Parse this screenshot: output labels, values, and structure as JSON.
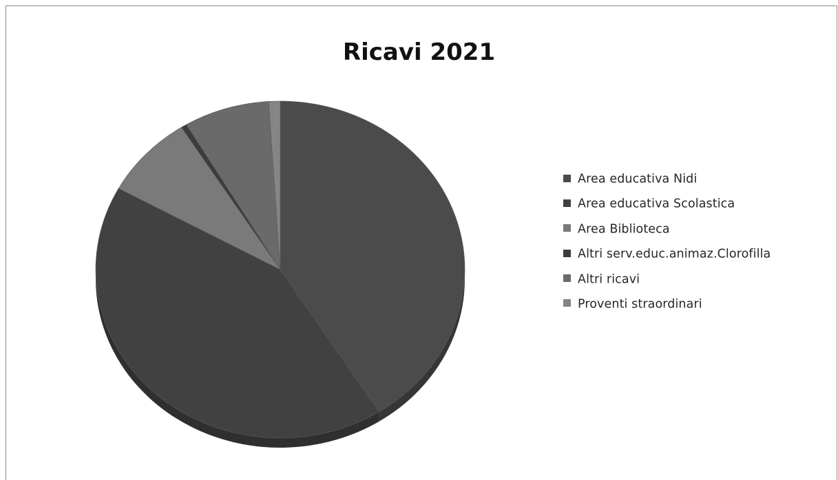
{
  "chart_data": {
    "type": "pie",
    "title": "Ricavi 2021",
    "legend_position": "right",
    "categories": [
      "Area educativa Nidi",
      "Area educativa Scolastica",
      "Area Biblioteca",
      "Altri serv.educ.animaz.Clorofilla",
      "Altri ricavi",
      "Proventi straordinari"
    ],
    "values": [
      41,
      42,
      8,
      0.5,
      7.5,
      1
    ],
    "colors": [
      "#4b4b4b",
      "#414141",
      "#7a7a7a",
      "#3c3c3c",
      "#6a6a6a",
      "#858585"
    ]
  }
}
